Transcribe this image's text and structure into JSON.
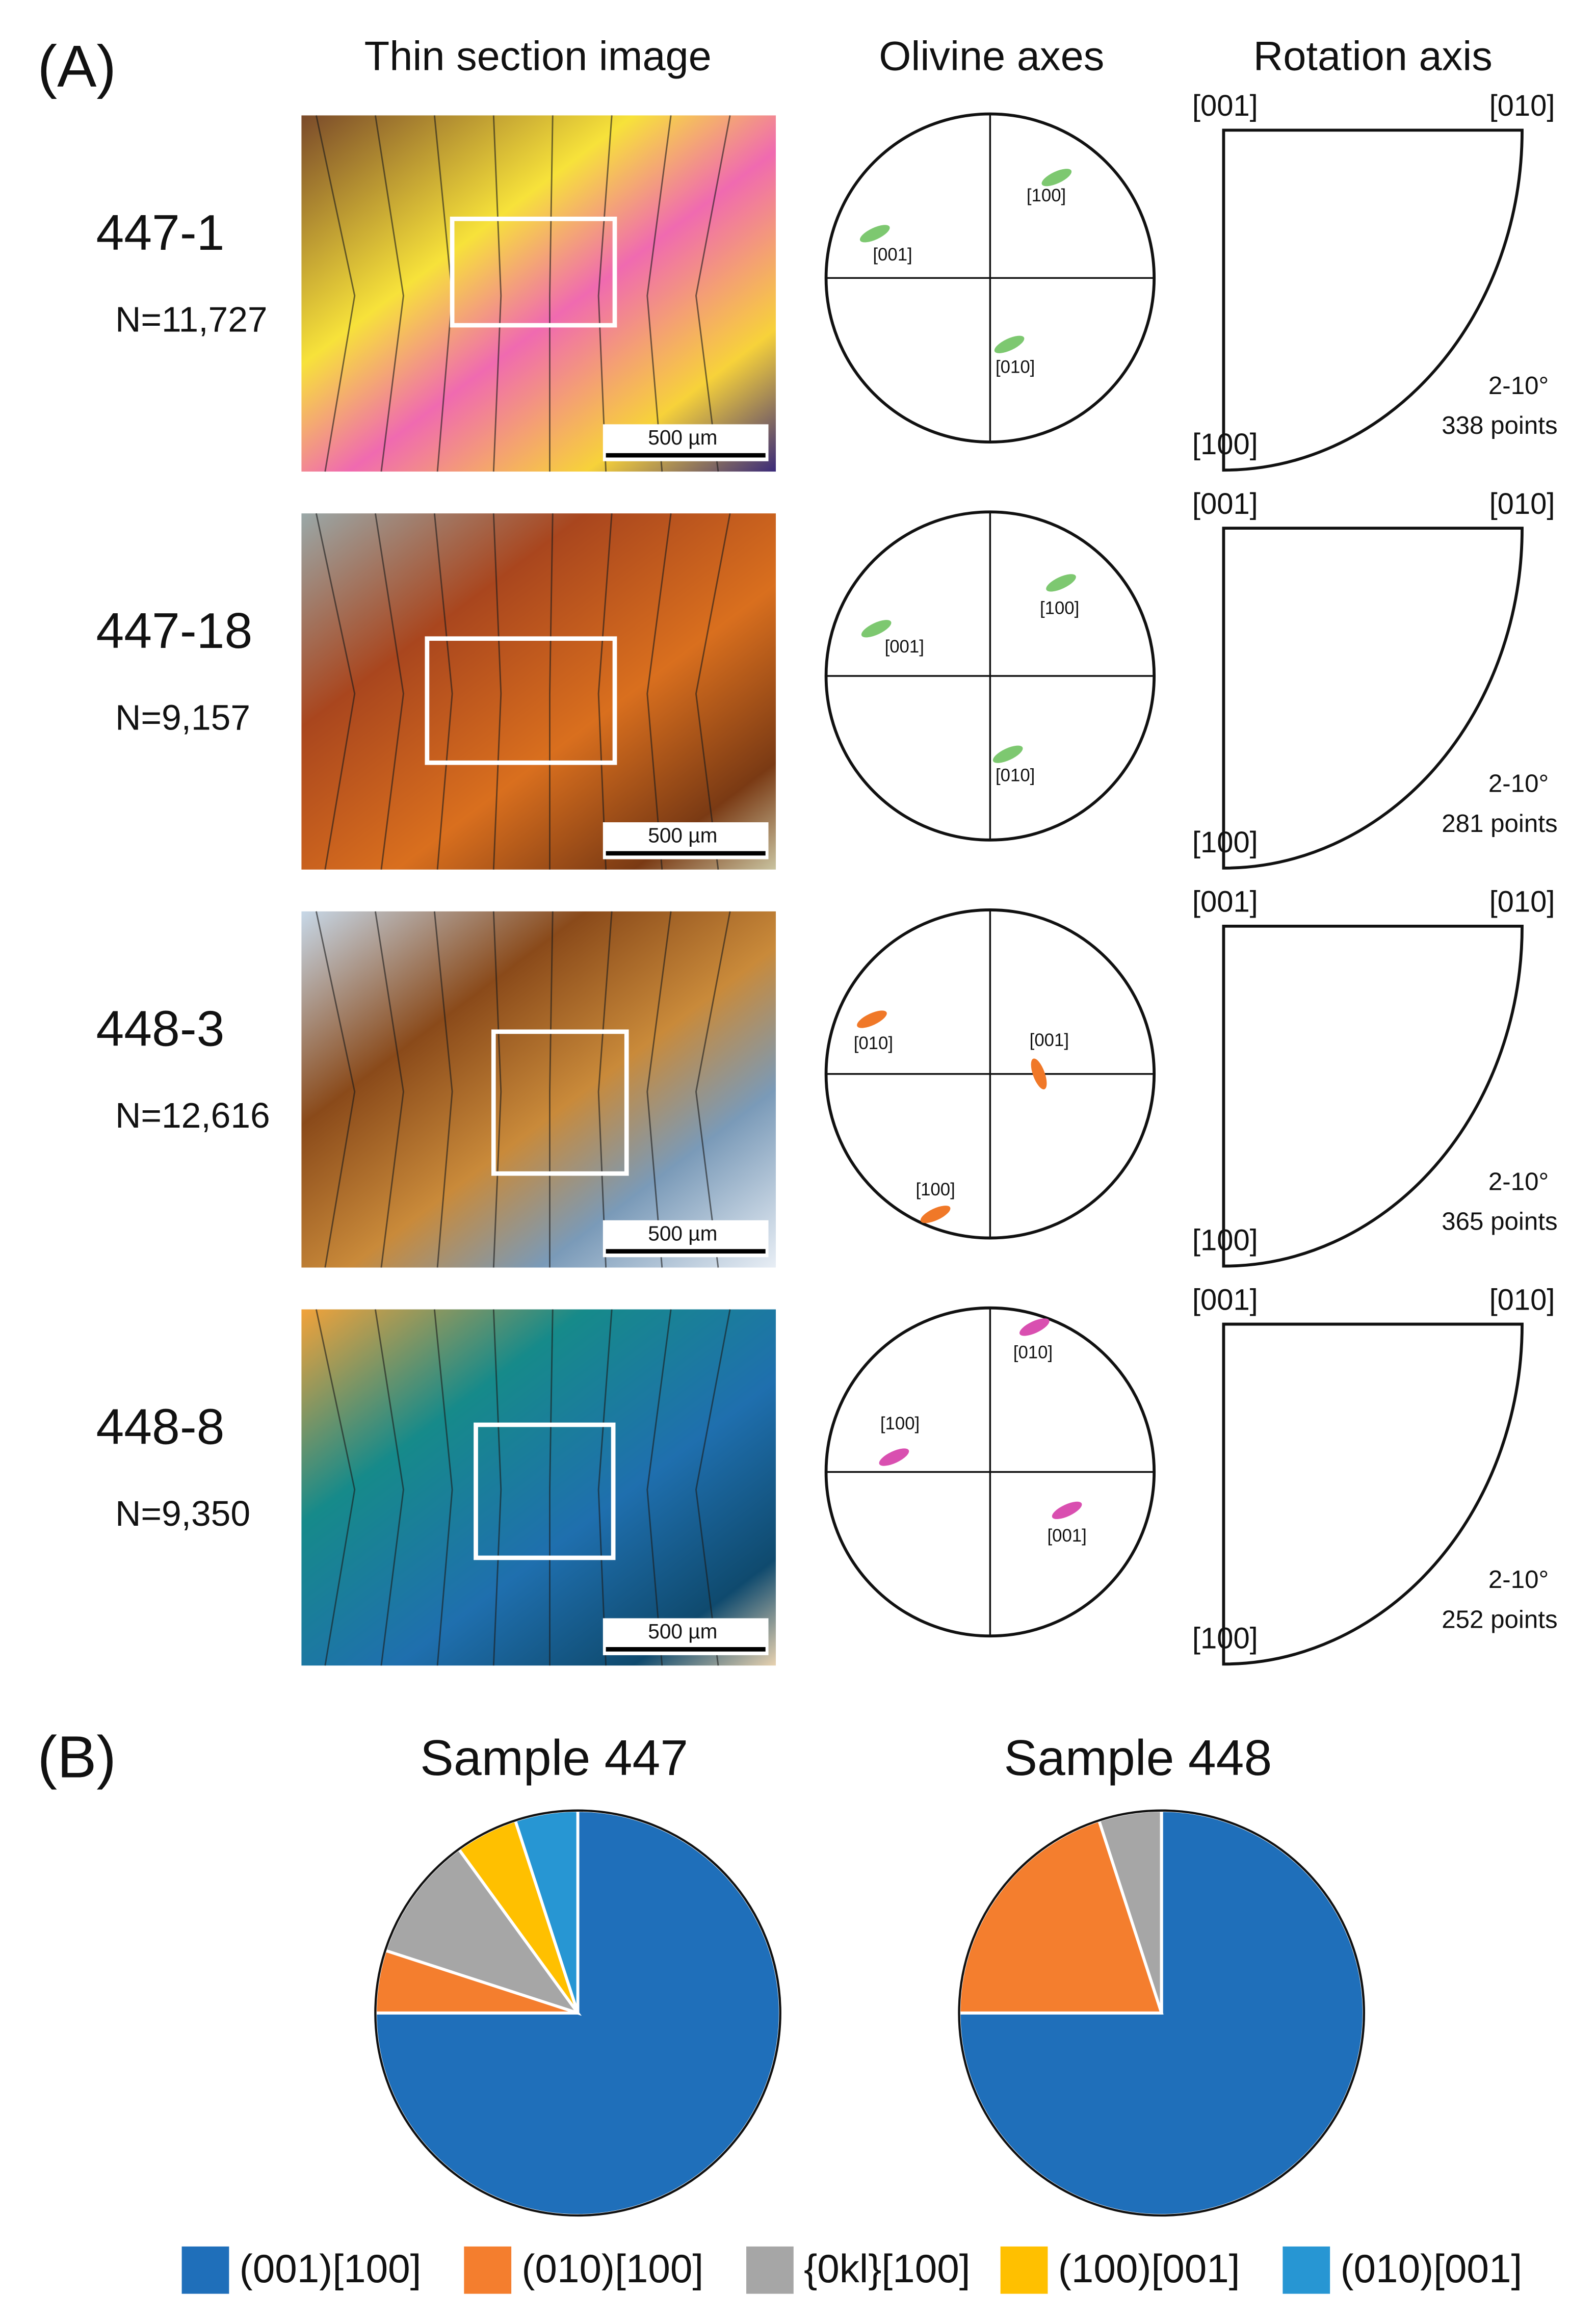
{
  "panel_a": {
    "label": "(A)",
    "columns": [
      "Thin section image",
      "Olivine axes",
      "Rotation axis"
    ],
    "rows": [
      {
        "sample": "447-1",
        "n": "N=11,727",
        "scale": "500 µm",
        "axes": [
          "[001]",
          "[100]",
          "[010]"
        ],
        "poles": [
          "[001]",
          "[010]",
          "[100]"
        ],
        "range": "2-10°",
        "points": "338 points"
      },
      {
        "sample": "447-18",
        "n": "N=9,157",
        "scale": "500 µm",
        "axes": [
          "[001]",
          "[100]",
          "[010]"
        ],
        "poles": [
          "[001]",
          "[010]",
          "[100]"
        ],
        "range": "2-10°",
        "points": "281 points"
      },
      {
        "sample": "448-3",
        "n": "N=12,616",
        "scale": "500 µm",
        "axes": [
          "[010]",
          "[001]",
          "[100]"
        ],
        "poles": [
          "[001]",
          "[010]",
          "[100]"
        ],
        "range": "2-10°",
        "points": "365 points"
      },
      {
        "sample": "448-8",
        "n": "N=9,350",
        "scale": "500 µm",
        "axes": [
          "[010]",
          "[100]",
          "[001]"
        ],
        "poles": [
          "[001]",
          "[010]",
          "[100]"
        ],
        "range": "2-10°",
        "points": "252 points"
      }
    ]
  },
  "panel_b": {
    "label": "(B)"
  },
  "legend": {
    "labels": [
      "(001)[100]",
      "(010)[100]",
      "{0kl}[100]",
      "(100)[001]",
      "(010)[001]"
    ],
    "colors": [
      "#1f6fba",
      "#f47e2e",
      "#a6a6a6",
      "#ffc000",
      "#2796d3"
    ]
  },
  "chart_data": [
    {
      "type": "pie",
      "title": "Sample 447",
      "values": [
        75,
        5,
        10,
        5,
        5
      ]
    },
    {
      "type": "pie",
      "title": "Sample 448",
      "values": [
        75,
        20,
        5,
        0,
        0
      ]
    }
  ]
}
